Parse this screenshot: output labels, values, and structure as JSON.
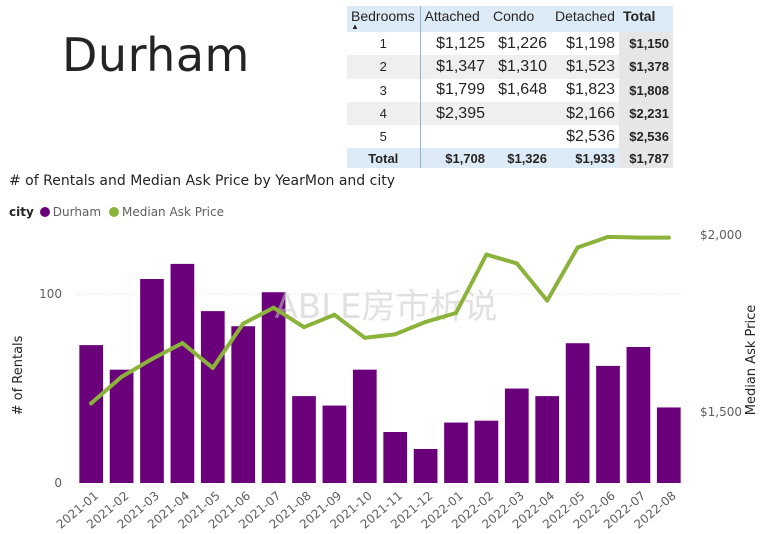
{
  "city_title": "Durham",
  "matrix": {
    "headers": [
      "Bedrooms",
      "Attached",
      "Condo",
      "Detached",
      "Total"
    ],
    "rows": [
      [
        "1",
        "$1,125",
        "$1,226",
        "$1,198",
        "$1,150"
      ],
      [
        "2",
        "$1,347",
        "$1,310",
        "$1,523",
        "$1,378"
      ],
      [
        "3",
        "$1,799",
        "$1,648",
        "$1,823",
        "$1,808"
      ],
      [
        "4",
        "$2,395",
        "",
        "$2,166",
        "$2,231"
      ],
      [
        "5",
        "",
        "",
        "$2,536",
        "$2,536"
      ]
    ],
    "total_row": [
      "Total",
      "$1,708",
      "$1,326",
      "$1,933",
      "$1,787"
    ]
  },
  "chart_data": {
    "type": "bar",
    "title": "# of Rentals and Median Ask Price by YearMon and city",
    "legend_title": "city",
    "legend_position": "top-left",
    "categories": [
      "2021-01",
      "2021-02",
      "2021-03",
      "2021-04",
      "2021-05",
      "2021-06",
      "2021-07",
      "2021-08",
      "2021-09",
      "2021-10",
      "2021-11",
      "2021-12",
      "2022-01",
      "2022-02",
      "2022-03",
      "2022-04",
      "2022-05",
      "2022-06",
      "2022-07",
      "2022-08"
    ],
    "ylabel": "# of Rentals",
    "y2label": "Median Ask Price",
    "ylim": [
      0,
      135
    ],
    "y2lim": [
      1300,
      2020
    ],
    "yticks": [
      "0",
      "100"
    ],
    "y2ticks": [
      "$1,500",
      "$2,000"
    ],
    "grid": true,
    "series": [
      {
        "name": "Durham",
        "type": "bar",
        "axis": "left",
        "color": "#6b007b",
        "values": [
          73,
          60,
          108,
          116,
          91,
          83,
          101,
          46,
          41,
          60,
          27,
          18,
          32,
          33,
          50,
          46,
          74,
          62,
          72,
          40
        ]
      },
      {
        "name": "Median Ask Price",
        "type": "line",
        "axis": "right",
        "color": "#8bb23a",
        "values": [
          1525,
          1600,
          1650,
          1695,
          1625,
          1750,
          1795,
          1740,
          1775,
          1710,
          1720,
          1755,
          1780,
          1945,
          1920,
          1815,
          1965,
          1995,
          1993,
          1993
        ]
      }
    ]
  },
  "watermark": "ABLE房市析说"
}
